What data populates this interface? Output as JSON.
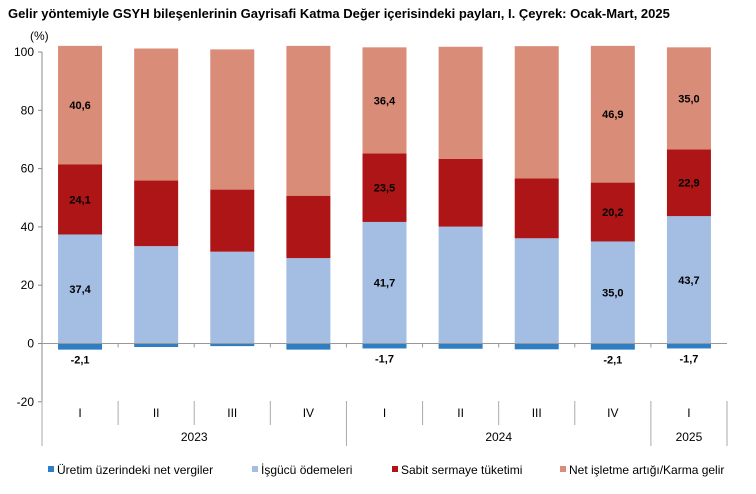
{
  "chart_data": {
    "type": "bar",
    "stacked": true,
    "title": "Gelir yöntemiyle GSYH bileşenlerinin Gayrisafi Katma Değer içerisindeki payları, I. Çeyrek: Ocak-Mart, 2025",
    "ylabel": "(%)",
    "ylim": [
      -20,
      100
    ],
    "yticks": [
      -20,
      0,
      20,
      40,
      60,
      80,
      100
    ],
    "grid": false,
    "legend_position": "bottom",
    "categories": [
      "I",
      "II",
      "III",
      "IV",
      "I",
      "II",
      "III",
      "IV",
      "I"
    ],
    "groups": [
      {
        "label": "2023",
        "count": 4
      },
      {
        "label": "2024",
        "count": 4
      },
      {
        "label": "2025",
        "count": 1
      }
    ],
    "series": [
      {
        "name": "Üretim üzerindeki net vergiler",
        "color": "#2e7ec4",
        "values": [
          -2.1,
          -1.2,
          -0.9,
          -2.1,
          -1.7,
          -1.8,
          -2.0,
          -2.1,
          -1.7
        ],
        "labels": [
          "-2,1",
          "",
          "",
          "",
          "-1,7",
          "",
          "",
          "-2,1",
          "-1,7"
        ]
      },
      {
        "name": "İşgücü ödemeleri",
        "color": "#a3bde3",
        "values": [
          37.4,
          33.4,
          31.5,
          29.3,
          41.7,
          40.1,
          36.1,
          35.0,
          43.7
        ],
        "labels": [
          "37,4",
          "",
          "",
          "",
          "41,7",
          "",
          "",
          "35,0",
          "43,7"
        ]
      },
      {
        "name": "Sabit sermaye tüketimi",
        "color": "#ad1517",
        "values": [
          24.1,
          22.5,
          21.3,
          21.4,
          23.5,
          23.2,
          20.5,
          20.2,
          22.9
        ],
        "labels": [
          "24,1",
          "",
          "",
          "",
          "23,5",
          "",
          "",
          "20,2",
          "22,9"
        ]
      },
      {
        "name": "Net işletme artığı/Karma gelir",
        "color": "#d98c77",
        "values": [
          40.6,
          45.3,
          48.1,
          51.4,
          36.4,
          38.5,
          45.4,
          46.9,
          35.0
        ],
        "labels": [
          "40,6",
          "",
          "",
          "",
          "36,4",
          "",
          "",
          "46,9",
          "35,0"
        ]
      }
    ]
  }
}
